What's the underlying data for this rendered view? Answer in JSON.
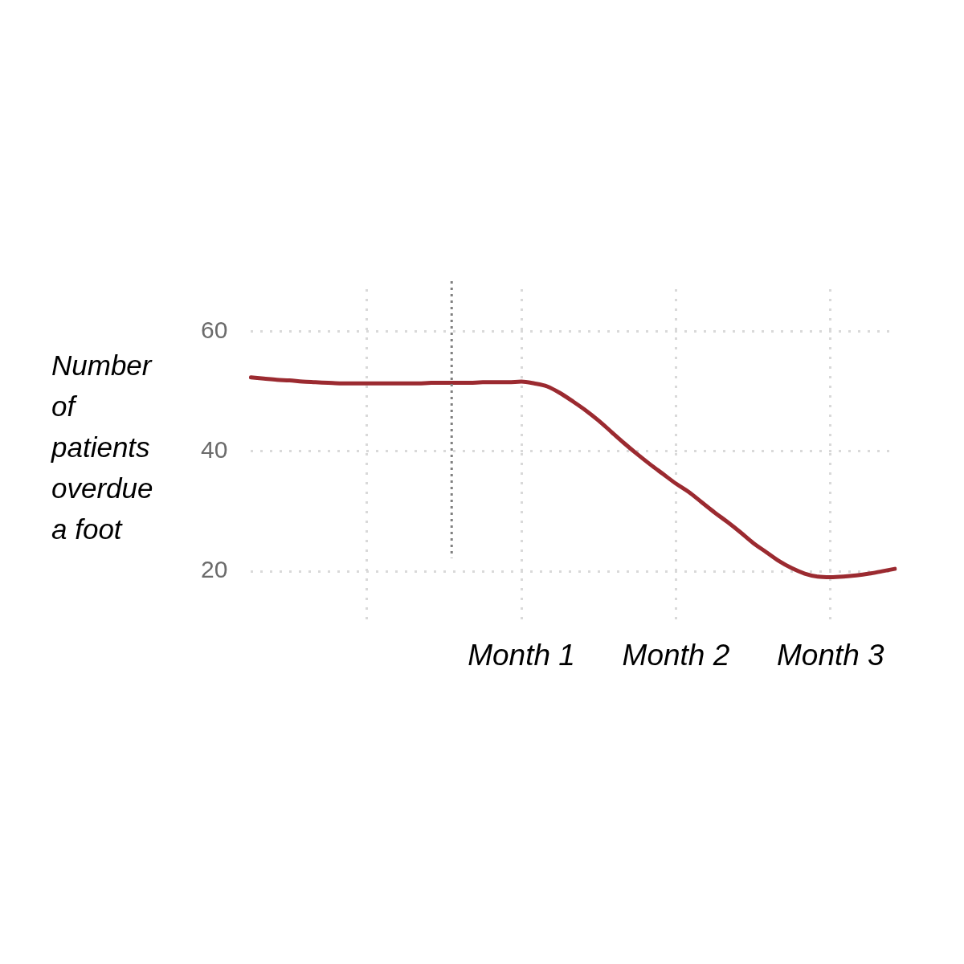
{
  "chart_data": {
    "type": "line",
    "ylabel": "Number of patients overdue a foot",
    "categories": [
      null,
      null,
      null,
      null,
      null,
      null,
      null,
      null,
      null,
      null,
      null,
      null,
      null,
      null,
      null,
      null,
      null,
      null,
      null,
      null,
      null,
      "Month 1",
      null,
      null,
      null,
      null,
      null,
      null,
      null,
      null,
      null,
      null,
      null,
      "Month 2",
      null,
      null,
      null,
      null,
      null,
      null,
      null,
      null,
      null,
      null,
      null,
      "Month 3",
      null,
      null,
      null,
      null,
      null
    ],
    "series": [
      {
        "color": "#9b2a30",
        "values": [
          52.3,
          52.1,
          51.9,
          51.8,
          51.6,
          51.5,
          51.4,
          51.3,
          51.3,
          51.3,
          51.3,
          51.3,
          51.3,
          51.3,
          51.4,
          51.4,
          51.4,
          51.4,
          51.5,
          51.5,
          51.5,
          51.6,
          51.3,
          50.8,
          49.7,
          48.3,
          46.8,
          45.1,
          43.2,
          41.3,
          39.5,
          37.8,
          36.2,
          34.6,
          33.2,
          31.5,
          29.8,
          28.2,
          26.5,
          24.7,
          23.2,
          21.7,
          20.5,
          19.6,
          19.1,
          19.0,
          19.1,
          19.3,
          19.6,
          20.0,
          20.4
        ]
      }
    ],
    "ylim": [
      11.5,
      67
    ],
    "yticks": [
      20,
      40,
      60
    ],
    "grid": true
  }
}
